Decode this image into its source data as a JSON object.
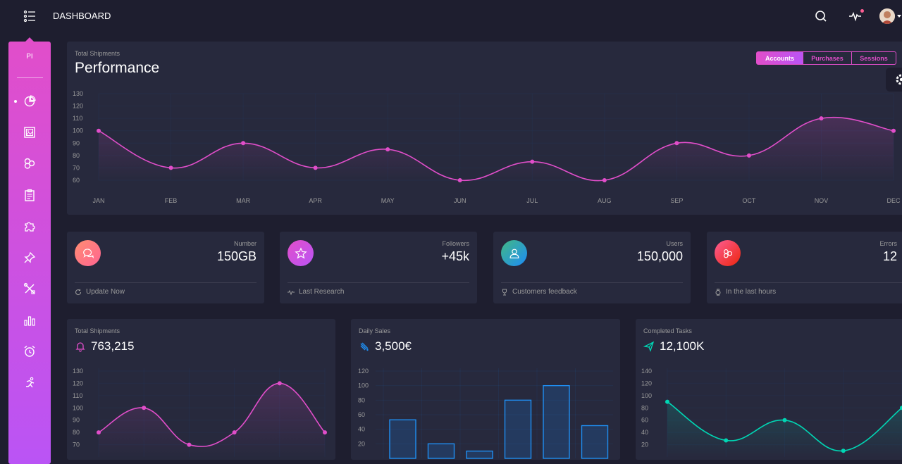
{
  "topbar": {
    "brand": "DASHBOARD",
    "icons": [
      "menu-icon",
      "search-icon",
      "activity-icon",
      "avatar"
    ]
  },
  "sidebar": {
    "logo": "PI",
    "items": [
      {
        "icon": "chart-pie-icon",
        "active": true
      },
      {
        "icon": "image-icon"
      },
      {
        "icon": "atom-icon"
      },
      {
        "icon": "clipboard-icon"
      },
      {
        "icon": "puzzle-icon"
      },
      {
        "icon": "pin-icon"
      },
      {
        "icon": "tools-icon"
      },
      {
        "icon": "bar-chart-icon"
      },
      {
        "icon": "alarm-clock-icon"
      },
      {
        "icon": "runner-icon"
      }
    ]
  },
  "performance": {
    "subtitle": "Total Shipments",
    "title": "Performance",
    "tabs": [
      {
        "label": "Accounts",
        "active": true
      },
      {
        "label": "Purchases"
      },
      {
        "label": "Sessions"
      }
    ]
  },
  "stats": [
    {
      "label": "Number",
      "value": "150GB",
      "footer": "Update Now",
      "icon": "chat-icon",
      "footer_icon": "refresh-icon",
      "color_from": "#ff8d72",
      "color_to": "#ff6491"
    },
    {
      "label": "Followers",
      "value": "+45k",
      "footer": "Last Research",
      "icon": "star-icon",
      "footer_icon": "sound-wave-icon",
      "color_from": "#e14eca",
      "color_to": "#ba54f5"
    },
    {
      "label": "Users",
      "value": "150,000",
      "footer": "Customers feedback",
      "icon": "user-icon",
      "footer_icon": "trophy-icon",
      "color_from": "#42b883",
      "color_to": "#1d8cf8"
    },
    {
      "label": "Errors",
      "value": "12",
      "footer": "In the last hours",
      "icon": "molecule-icon",
      "footer_icon": "watch-icon",
      "color_from": "#fd5d93",
      "color_to": "#ec250d"
    }
  ],
  "small_cards": [
    {
      "subtitle": "Total Shipments",
      "value": "763,215",
      "icon": "bell-icon",
      "icon_color": "#e14eca"
    },
    {
      "subtitle": "Daily Sales",
      "value": "3,500€",
      "icon": "delivery-icon",
      "icon_color": "#1f8ef1"
    },
    {
      "subtitle": "Completed Tasks",
      "value": "12,100K",
      "icon": "send-icon",
      "icon_color": "#00d6b4"
    }
  ],
  "chart_data": [
    {
      "type": "line",
      "title": "Performance",
      "categories": [
        "JAN",
        "FEB",
        "MAR",
        "APR",
        "MAY",
        "JUN",
        "JUL",
        "AUG",
        "SEP",
        "OCT",
        "NOV",
        "DEC"
      ],
      "values": [
        100,
        70,
        90,
        70,
        85,
        60,
        75,
        60,
        90,
        80,
        110,
        100
      ],
      "ylim": [
        60,
        130
      ],
      "yticks": [
        130,
        120,
        110,
        100,
        90,
        80,
        70,
        60
      ],
      "color": "#e14eca"
    },
    {
      "type": "line",
      "title": "Total Shipments",
      "values": [
        80,
        100,
        70,
        80,
        120,
        80
      ],
      "yticks": [
        130,
        120,
        110,
        100,
        90,
        80,
        70
      ],
      "ylim": [
        60,
        130
      ],
      "color": "#e14eca"
    },
    {
      "type": "bar",
      "title": "Daily Sales",
      "values": [
        53,
        20,
        10,
        80,
        100,
        45
      ],
      "yticks": [
        120,
        100,
        80,
        60,
        40,
        20
      ],
      "ylim": [
        0,
        120
      ],
      "color": "#1f8ef1"
    },
    {
      "type": "line",
      "title": "Completed Tasks",
      "values": [
        90,
        27,
        60,
        10,
        80
      ],
      "yticks": [
        140,
        120,
        100,
        80,
        60,
        40,
        20
      ],
      "ylim": [
        0,
        140
      ],
      "color": "#00d6b4"
    }
  ]
}
